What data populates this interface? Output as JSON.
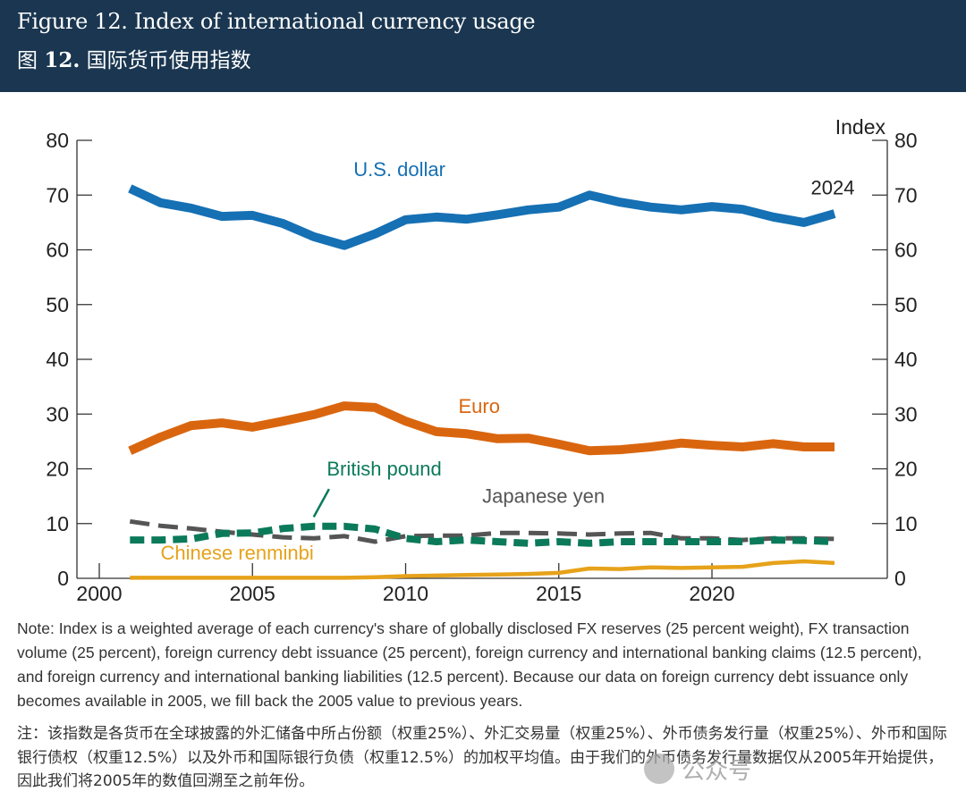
{
  "header": {
    "title_en": "Figure 12. Index of international currency usage",
    "title_zh_prefix": "图",
    "title_zh_num": "12.",
    "title_zh_text": "国际货币使用指数",
    "background": "#1a3650"
  },
  "chart_data": {
    "type": "line",
    "title": "Index of international currency usage",
    "xlabel": "",
    "ylabel": "Index",
    "xlim": [
      1999.3,
      2026.3
    ],
    "ylim": [
      0,
      80
    ],
    "xticks": [
      2000,
      2005,
      2010,
      2015,
      2020
    ],
    "yticks": [
      0,
      10,
      20,
      30,
      40,
      50,
      60,
      70,
      80
    ],
    "grid": false,
    "dual_y_axis": true,
    "end_label": "2024",
    "x": [
      2001,
      2002,
      2003,
      2004,
      2005,
      2006,
      2007,
      2008,
      2009,
      2010,
      2011,
      2012,
      2013,
      2014,
      2015,
      2016,
      2017,
      2018,
      2019,
      2020,
      2021,
      2022,
      2023,
      2024
    ],
    "series": [
      {
        "name": "U.S. dollar",
        "color": "#1670b4",
        "style": "solid",
        "values": [
          71.2,
          68.6,
          67.6,
          66.1,
          66.3,
          64.8,
          62.4,
          60.8,
          62.9,
          65.5,
          66.0,
          65.6,
          66.4,
          67.3,
          67.8,
          70.0,
          68.7,
          67.8,
          67.3,
          67.9,
          67.4,
          66.0,
          65.0,
          66.6
        ]
      },
      {
        "name": "Euro",
        "color": "#d9660f",
        "style": "solid",
        "values": [
          23.3,
          25.8,
          27.9,
          28.4,
          27.6,
          28.7,
          29.9,
          31.5,
          31.2,
          28.7,
          26.8,
          26.4,
          25.5,
          25.6,
          24.5,
          23.3,
          23.5,
          24.0,
          24.7,
          24.3,
          24.0,
          24.6,
          24.0,
          24.0
        ]
      },
      {
        "name": "British pound",
        "color": "#0b7a5a",
        "style": "dashed-thick",
        "values": [
          7.0,
          7.0,
          7.2,
          8.2,
          8.3,
          9.1,
          9.5,
          9.5,
          9.0,
          7.3,
          6.7,
          7.0,
          6.7,
          6.4,
          6.7,
          6.4,
          6.7,
          6.7,
          6.7,
          6.7,
          6.7,
          7.0,
          6.9,
          6.7
        ]
      },
      {
        "name": "Japanese yen",
        "color": "#555555",
        "style": "dashed",
        "values": [
          10.4,
          9.6,
          9.1,
          8.5,
          8.0,
          7.5,
          7.3,
          7.7,
          6.7,
          7.7,
          7.8,
          7.8,
          8.3,
          8.3,
          8.2,
          8.0,
          8.2,
          8.3,
          7.3,
          7.3,
          7.0,
          7.3,
          7.3,
          7.2
        ]
      },
      {
        "name": "Chinese renminbi",
        "color": "#e6a21a",
        "style": "solid-thin",
        "values": [
          0.1,
          0.1,
          0.1,
          0.1,
          0.1,
          0.1,
          0.1,
          0.1,
          0.2,
          0.4,
          0.5,
          0.6,
          0.7,
          0.8,
          1.0,
          1.8,
          1.7,
          2.0,
          1.9,
          2.0,
          2.1,
          2.8,
          3.1,
          2.8
        ]
      }
    ],
    "annotations": [
      {
        "text": "U.S. dollar",
        "series": "U.S. dollar",
        "x": 2009.8,
        "y": 73.5
      },
      {
        "text": "Euro",
        "series": "Euro",
        "x": 2012.4,
        "y": 30.2
      },
      {
        "text": "British pound",
        "series": "British pound",
        "x": 2009.3,
        "y": 18.8
      },
      {
        "text": "Japanese yen",
        "series": "Japanese yen",
        "x": 2014.5,
        "y": 13.8
      },
      {
        "text": "Chinese renminbi",
        "series": "Chinese renminbi",
        "x": 2004.5,
        "y": 3.4
      }
    ]
  },
  "notes": {
    "en": "Note: Index is a weighted average of each currency's share of globally disclosed FX reserves (25 percent weight), FX transaction volume (25 percent), foreign currency debt issuance (25 percent), foreign currency and international banking claims (12.5 percent), and foreign currency and international banking liabilities (12.5 percent). Because our data on foreign currency debt issuance only becomes available in 2005, we fill back the 2005 value to previous years.",
    "zh": "注：该指数是各货币在全球披露的外汇储备中所占份额（权重25%）、外汇交易量（权重25%）、外币债务发行量（权重25%）、外币和国际银行债权（权重12.5%）以及外币和国际银行负债（权重12.5%）的加权平均值。由于我们的外币债务发行量数据仅从2005年开始提供，因此我们将2005年的数值回溯至之前年份。"
  },
  "watermark": {
    "text": "公众号"
  }
}
